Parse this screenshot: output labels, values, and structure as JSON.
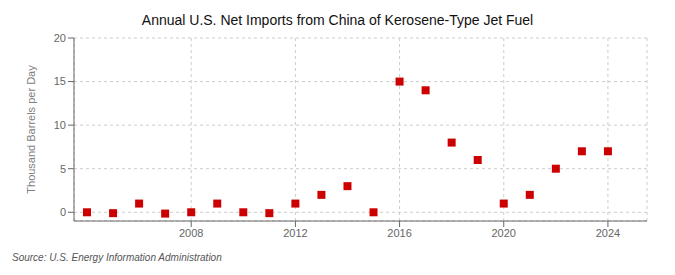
{
  "chart_data": {
    "type": "scatter",
    "title": "Annual U.S. Net Imports from China of Kerosene-Type Jet Fuel",
    "ylabel": "Thousand Barrels per Day",
    "annotations": [
      "Source: U.S. Energy Information Administration"
    ],
    "x": [
      2004,
      2005,
      2006,
      2007,
      2008,
      2009,
      2010,
      2011,
      2012,
      2013,
      2014,
      2015,
      2016,
      2017,
      2018,
      2019,
      2020,
      2021,
      2022,
      2023,
      2024
    ],
    "values": [
      0.0,
      -0.1,
      1.0,
      -0.15,
      0.0,
      1.0,
      0.0,
      -0.1,
      1.0,
      2.0,
      3.0,
      0.0,
      15.0,
      14.0,
      8.0,
      6.0,
      1.0,
      2.0,
      5.0,
      7.0,
      7.0
    ],
    "color": "#cc0000",
    "marker": "square",
    "xlim": [
      2003.5,
      2025.5
    ],
    "xticks": [
      2008,
      2012,
      2016,
      2020,
      2024
    ],
    "ylim": [
      -1,
      20
    ],
    "yticks": [
      0,
      5,
      10,
      15,
      20
    ],
    "grid": true
  }
}
